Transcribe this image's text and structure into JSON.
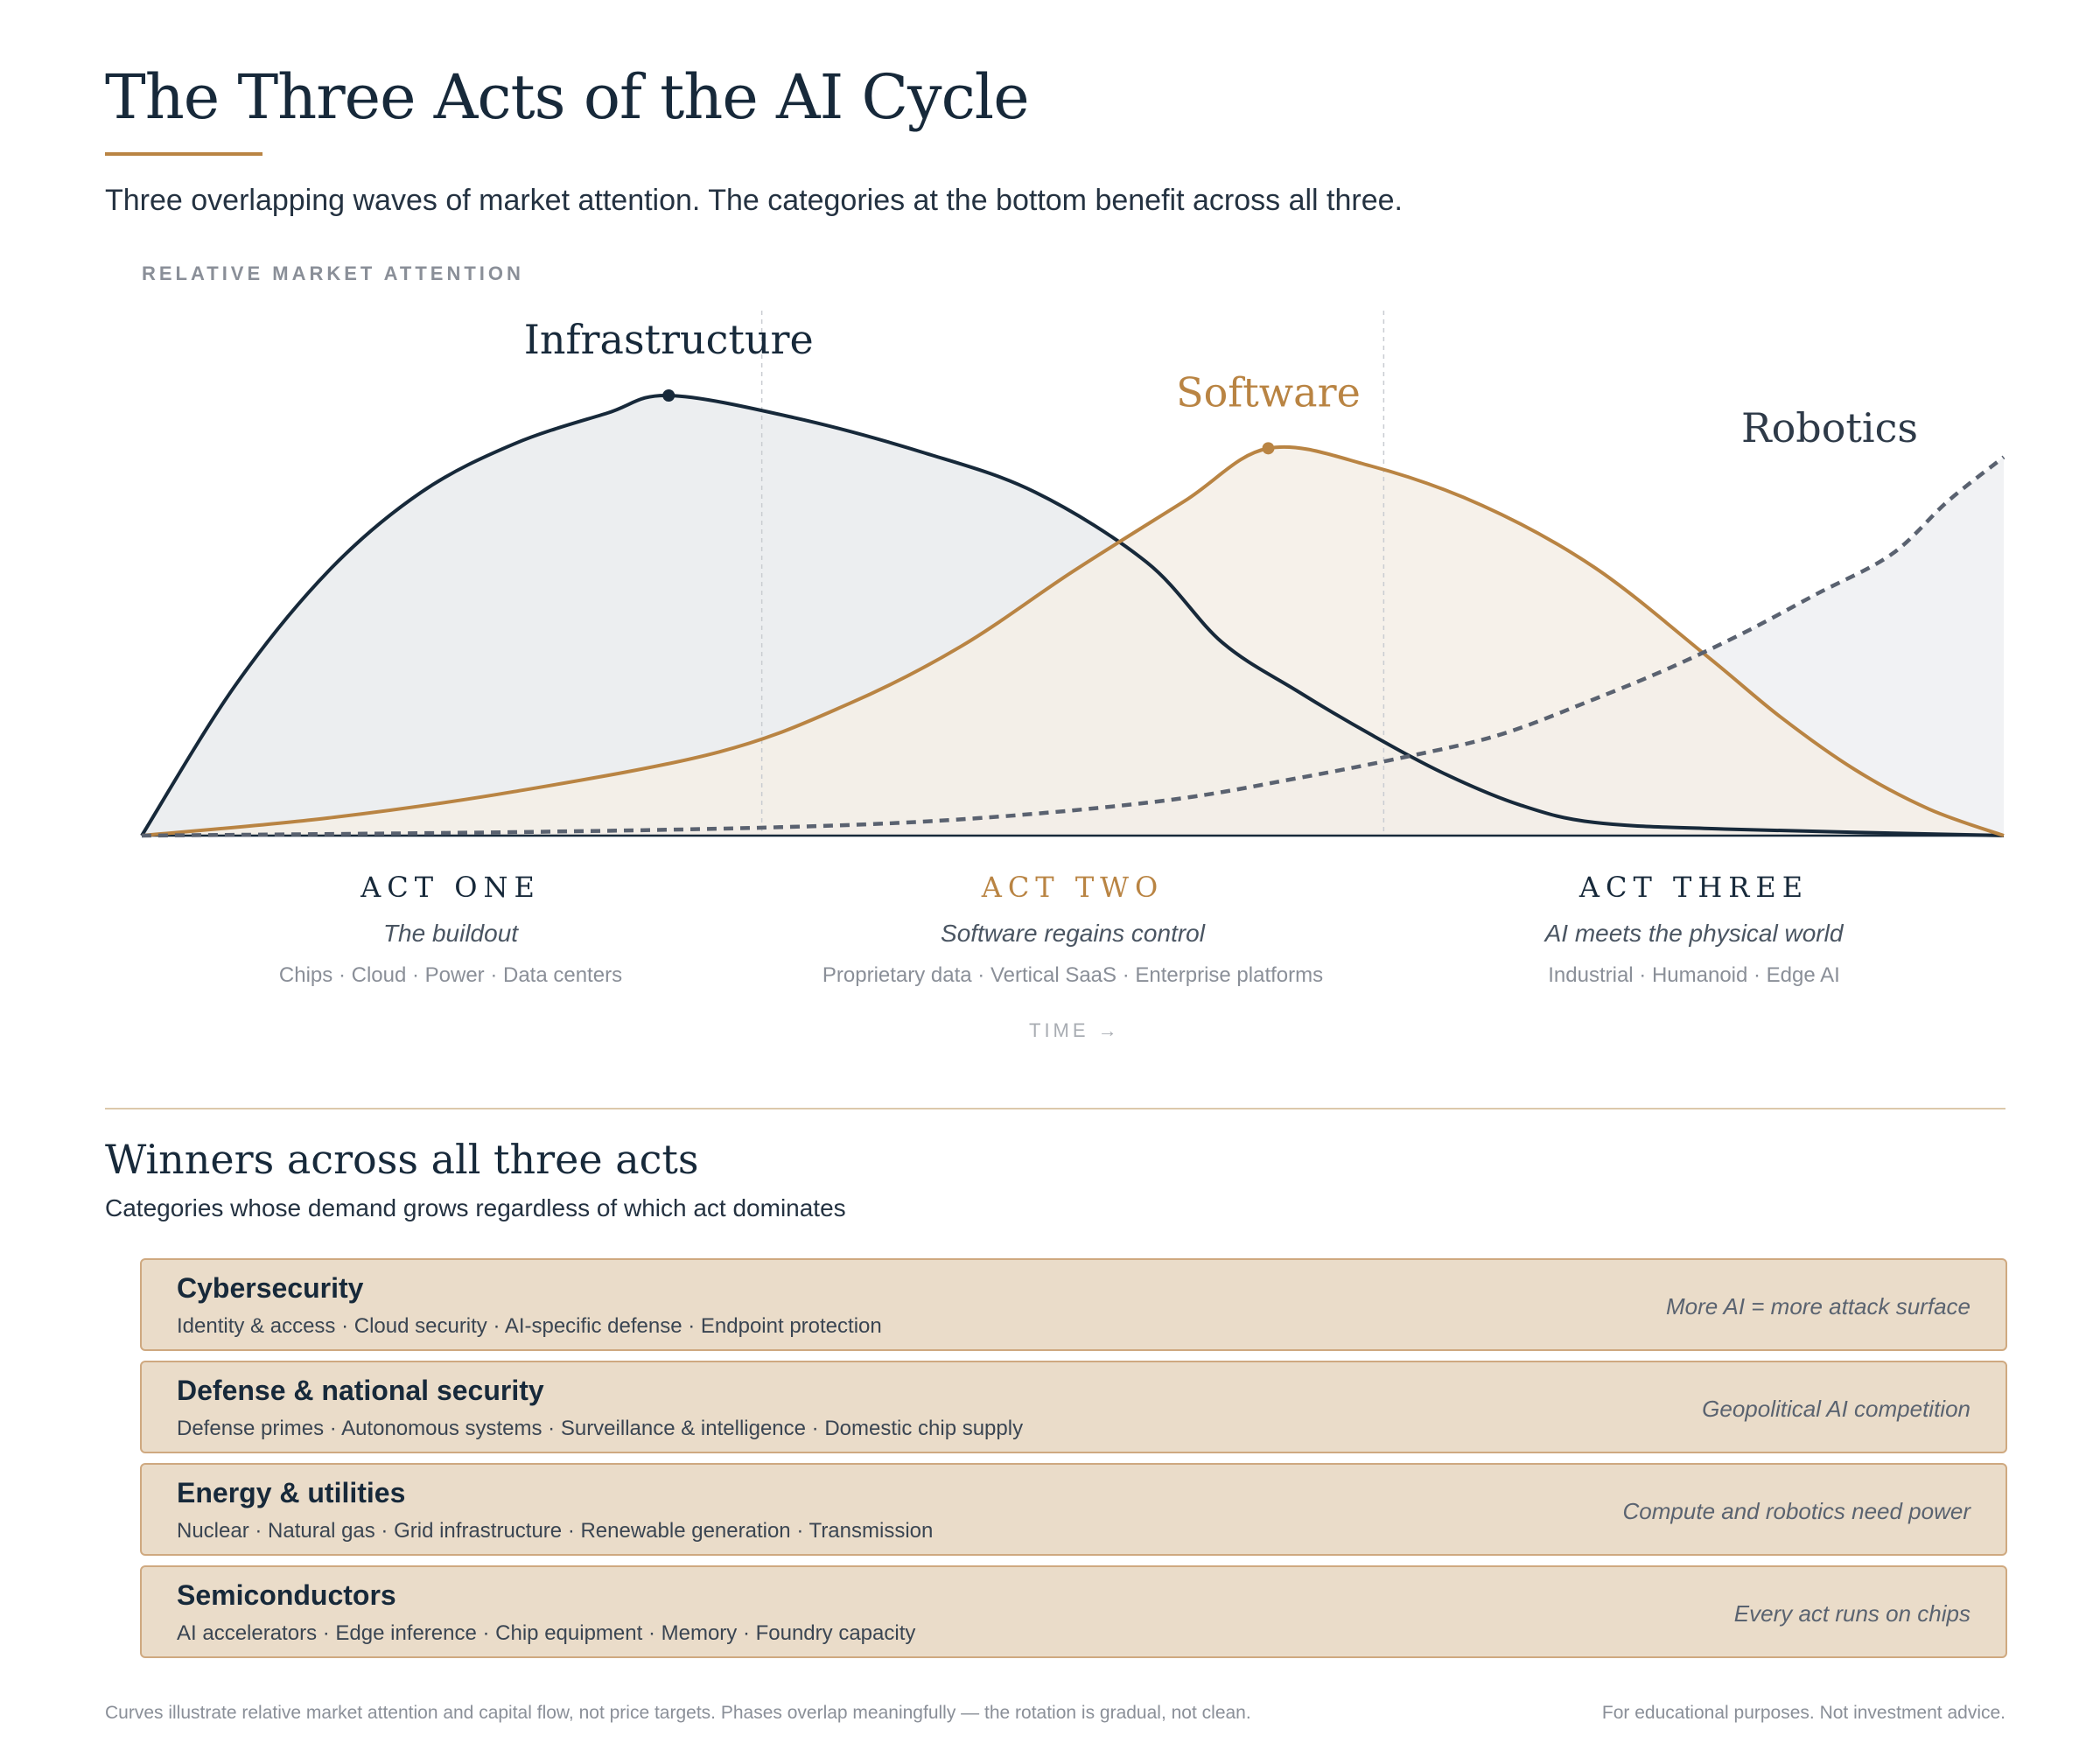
{
  "header": {
    "title": "The Three Acts of the AI Cycle",
    "subtitle": "Three overlapping waves of market attention. The categories at the bottom benefit across all three.",
    "accent_color": "#b98443",
    "ink_color": "#17293a"
  },
  "chart_data": {
    "type": "area",
    "ylabel": "RELATIVE MARKET ATTENTION",
    "xlabel": "TIME →",
    "x_range": [
      0,
      100
    ],
    "y_range": [
      0,
      100
    ],
    "grid": false,
    "act_boundaries": [
      33.3,
      66.7
    ],
    "series": [
      {
        "name": "Infrastructure",
        "style": "solid",
        "color": "#17293a",
        "fill": "#e9ebed",
        "peak_x": 28.3,
        "points": [
          [
            0,
            0
          ],
          [
            5,
            34
          ],
          [
            10,
            60
          ],
          [
            15,
            78
          ],
          [
            20,
            89
          ],
          [
            25,
            96
          ],
          [
            28.3,
            100
          ],
          [
            35,
            95
          ],
          [
            42,
            87
          ],
          [
            48,
            78
          ],
          [
            54,
            62
          ],
          [
            58,
            44
          ],
          [
            62,
            33
          ],
          [
            66,
            23
          ],
          [
            70,
            14
          ],
          [
            74,
            7
          ],
          [
            78,
            3
          ],
          [
            85,
            1.5
          ],
          [
            100,
            0
          ]
        ]
      },
      {
        "name": "Software",
        "style": "solid",
        "color": "#b98443",
        "fill": "#f5efe6",
        "peak_x": 60.5,
        "points": [
          [
            0,
            0
          ],
          [
            10,
            4
          ],
          [
            20,
            10
          ],
          [
            31,
            19
          ],
          [
            38,
            30
          ],
          [
            44,
            43
          ],
          [
            50,
            60
          ],
          [
            56,
            76
          ],
          [
            60.5,
            88
          ],
          [
            66,
            84
          ],
          [
            72,
            75
          ],
          [
            78,
            61
          ],
          [
            84,
            41
          ],
          [
            88,
            27
          ],
          [
            92,
            15
          ],
          [
            96,
            6
          ],
          [
            100,
            0
          ]
        ]
      },
      {
        "name": "Robotics",
        "style": "dashed",
        "color": "#5a6270",
        "fill": "#eef0f2",
        "points": [
          [
            0,
            0
          ],
          [
            20,
            0.8
          ],
          [
            35,
            2
          ],
          [
            45,
            4
          ],
          [
            55,
            8
          ],
          [
            62,
            13
          ],
          [
            68,
            18
          ],
          [
            73,
            23
          ],
          [
            78,
            31
          ],
          [
            82,
            38
          ],
          [
            86,
            46
          ],
          [
            90,
            55
          ],
          [
            94,
            64
          ],
          [
            97,
            76
          ],
          [
            100,
            86
          ]
        ]
      }
    ]
  },
  "acts": [
    {
      "title": "ACT ONE",
      "subtitle": "The buildout",
      "items": "Chips · Cloud · Power · Data centers"
    },
    {
      "title": "ACT TWO",
      "subtitle": "Software regains control",
      "items": "Proprietary data · Vertical SaaS · Enterprise platforms"
    },
    {
      "title": "ACT THREE",
      "subtitle": "AI meets the physical world",
      "items": "Industrial · Humanoid · Edge AI"
    }
  ],
  "winners": {
    "title": "Winners across all three acts",
    "subtitle": "Categories whose demand grows regardless of which act dominates",
    "cards": [
      {
        "name": "Cybersecurity",
        "items": "Identity & access · Cloud security · AI-specific defense · Endpoint protection",
        "note": "More AI = more attack surface"
      },
      {
        "name": "Defense & national security",
        "items": "Defense primes · Autonomous systems · Surveillance & intelligence · Domestic chip supply",
        "note": "Geopolitical AI competition"
      },
      {
        "name": "Energy & utilities",
        "items": "Nuclear · Natural gas · Grid infrastructure · Renewable generation · Transmission",
        "note": "Compute and robotics need power"
      },
      {
        "name": "Semiconductors",
        "items": "AI accelerators · Edge inference · Chip equipment · Memory · Foundry capacity",
        "note": "Every act runs on chips"
      }
    ]
  },
  "footer": {
    "left": "Curves illustrate relative market attention and capital flow, not price targets. Phases overlap meaningfully — the rotation is gradual, not clean.",
    "right": "For educational purposes. Not investment advice."
  }
}
